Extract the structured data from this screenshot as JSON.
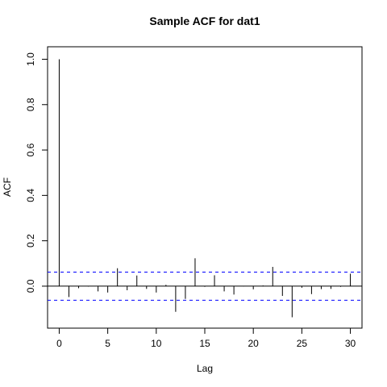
{
  "chart_data": {
    "type": "bar",
    "title": "Sample ACF for dat1",
    "xlabel": "Lag",
    "ylabel": "ACF",
    "xlim": [
      -1.2,
      31.2
    ],
    "ylim": [
      -0.185,
      1.055
    ],
    "x_ticks": [
      0,
      5,
      10,
      15,
      20,
      25,
      30
    ],
    "x_tick_labels": [
      "0",
      "5",
      "10",
      "15",
      "20",
      "25",
      "30"
    ],
    "y_ticks": [
      0.0,
      0.2,
      0.4,
      0.6,
      0.8,
      1.0
    ],
    "y_tick_labels": [
      "0.0",
      "0.2",
      "0.4",
      "0.6",
      "0.8",
      "1.0"
    ],
    "lags": [
      0,
      1,
      2,
      3,
      4,
      5,
      6,
      7,
      8,
      9,
      10,
      11,
      12,
      13,
      14,
      15,
      16,
      17,
      18,
      19,
      20,
      21,
      22,
      23,
      24,
      25,
      26,
      27,
      28,
      29,
      30
    ],
    "values": [
      1.0,
      -0.048,
      -0.009,
      -0.002,
      -0.023,
      -0.028,
      0.079,
      -0.018,
      0.047,
      -0.012,
      -0.028,
      0.006,
      -0.113,
      -0.056,
      0.123,
      -0.003,
      0.048,
      -0.023,
      -0.037,
      -0.001,
      -0.014,
      0.003,
      0.085,
      -0.043,
      -0.137,
      -0.007,
      -0.035,
      -0.013,
      -0.012,
      -0.003,
      0.055
    ],
    "confidence_bounds": [
      0.062,
      -0.062
    ],
    "colors": {
      "bars": "#000000",
      "zero_line": "#000000",
      "bounds": "#0000ff",
      "frame": "#000000"
    },
    "grid": false,
    "legend": "none"
  }
}
